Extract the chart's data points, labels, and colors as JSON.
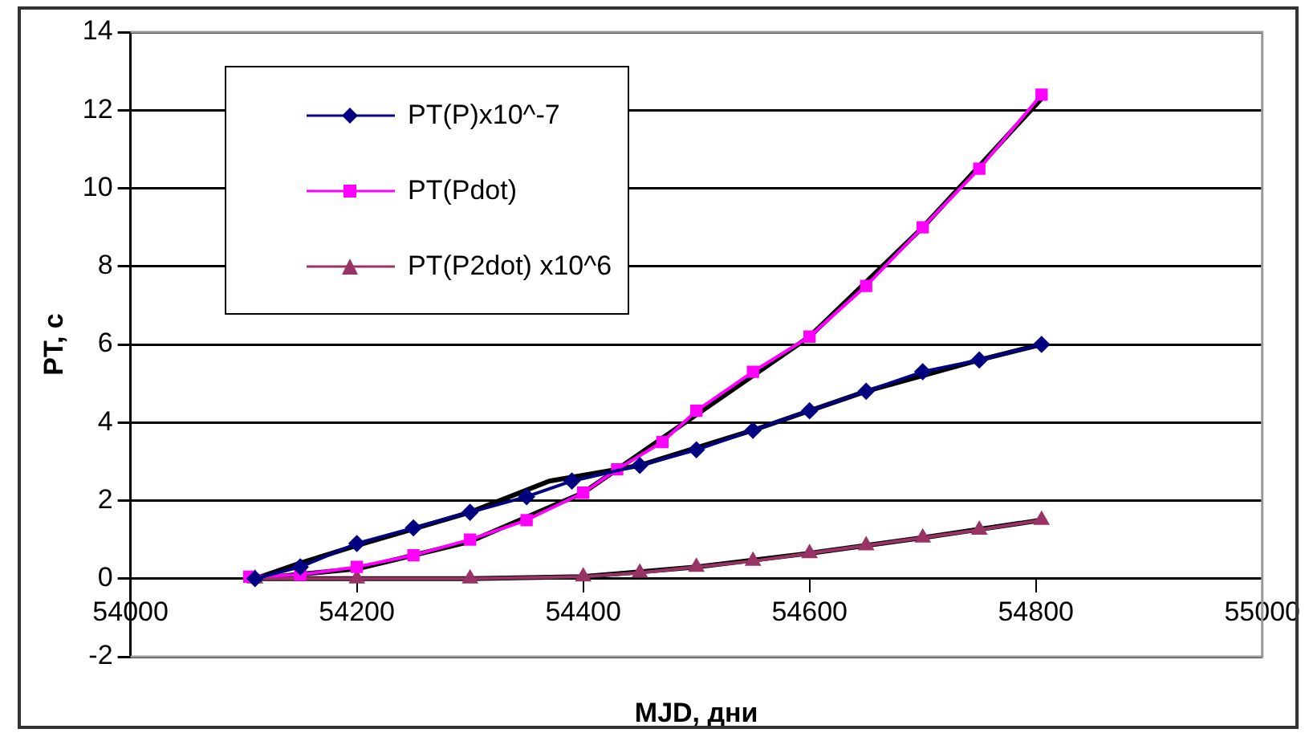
{
  "chart_data": {
    "type": "line",
    "xlabel": "MJD, дни",
    "ylabel": "PT, с",
    "xlim": [
      54000,
      55000
    ],
    "xticks": [
      54000,
      54200,
      54400,
      54600,
      54800,
      55000
    ],
    "ylim": [
      -2,
      14
    ],
    "yticks": [
      -2,
      0,
      2,
      4,
      6,
      8,
      10,
      12,
      14
    ],
    "grid": "y",
    "legend": "top left",
    "series": [
      {
        "name": "PT(P)x10^-7",
        "color": "#000080",
        "marker": "diamond",
        "x": [
          54110,
          54150,
          54200,
          54250,
          54300,
          54350,
          54390,
          54450,
          54500,
          54550,
          54600,
          54650,
          54700,
          54750,
          54805
        ],
        "values": [
          0,
          0.3,
          0.9,
          1.3,
          1.7,
          2.1,
          2.5,
          2.9,
          3.3,
          3.8,
          4.3,
          4.8,
          5.3,
          5.6,
          6.0
        ]
      },
      {
        "name": "PT(Pdot)",
        "color": "#ff00ff",
        "marker": "square",
        "x": [
          54105,
          54150,
          54200,
          54250,
          54300,
          54350,
          54400,
          54430,
          54470,
          54500,
          54550,
          54600,
          54650,
          54700,
          54750,
          54805
        ],
        "values": [
          0.05,
          0.1,
          0.3,
          0.6,
          1.0,
          1.5,
          2.2,
          2.8,
          3.5,
          4.3,
          5.3,
          6.2,
          7.5,
          9.0,
          10.5,
          12.4
        ]
      },
      {
        "name": "PT(P2dot) x10^6",
        "color": "#993366",
        "marker": "triangle",
        "x": [
          54110,
          54200,
          54300,
          54400,
          54450,
          54500,
          54550,
          54600,
          54650,
          54700,
          54750,
          54805
        ],
        "values": [
          0,
          0,
          0,
          0.05,
          0.15,
          0.3,
          0.45,
          0.65,
          0.85,
          1.05,
          1.25,
          1.5
        ]
      },
      {
        "color": "#000000",
        "marker": "none",
        "x": [
          54110,
          54150,
          54200,
          54300,
          54370,
          54450,
          54550,
          54650,
          54750,
          54805
        ],
        "values": [
          0,
          0.4,
          0.85,
          1.7,
          2.5,
          2.9,
          3.8,
          4.8,
          5.6,
          6.0
        ]
      },
      {
        "color": "#000000",
        "marker": "none",
        "x": [
          54110,
          54200,
          54300,
          54400,
          54500,
          54600,
          54700,
          54805
        ],
        "values": [
          0,
          0.25,
          0.95,
          2.2,
          4.2,
          6.2,
          9.0,
          12.3
        ]
      },
      {
        "color": "#000000",
        "marker": "none",
        "x": [
          54110,
          54300,
          54400,
          54500,
          54600,
          54700,
          54805
        ],
        "values": [
          0,
          0,
          0.05,
          0.3,
          0.65,
          1.05,
          1.5
        ]
      }
    ]
  }
}
